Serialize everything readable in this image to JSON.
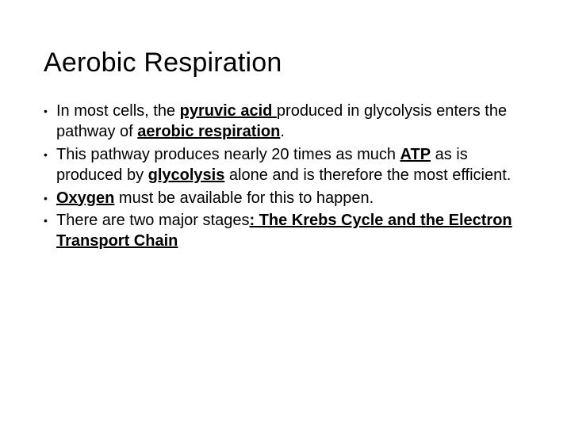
{
  "slide": {
    "title": "Aerobic Respiration",
    "bullets": [
      {
        "segments": [
          {
            "text": "In most cells, the ",
            "style": "plain"
          },
          {
            "text": "pyruvic acid ",
            "style": "bu"
          },
          {
            "text": "produced in glycolysis enters the pathway of ",
            "style": "plain"
          },
          {
            "text": "aerobic respiration",
            "style": "bu"
          },
          {
            "text": ".",
            "style": "plain"
          }
        ]
      },
      {
        "segments": [
          {
            "text": "This pathway produces nearly 20 times as much ",
            "style": "plain"
          },
          {
            "text": "ATP",
            "style": "bu"
          },
          {
            "text": " as is produced by ",
            "style": "plain"
          },
          {
            "text": "glycolysis",
            "style": "bu"
          },
          {
            "text": " alone and is therefore the most efficient.",
            "style": "plain"
          }
        ]
      },
      {
        "segments": [
          {
            "text": "Oxygen",
            "style": "bu"
          },
          {
            "text": " must be available for this to happen.",
            "style": "plain"
          }
        ]
      },
      {
        "segments": [
          {
            "text": "There are two major stages",
            "style": "plain"
          },
          {
            "text": ":  The Krebs Cycle and the Electron Transport Chain",
            "style": "bu"
          }
        ]
      }
    ],
    "colors": {
      "background": "#ffffff",
      "text": "#000000"
    },
    "font": {
      "title_size_pt": 34,
      "body_size_pt": 20,
      "family": "Arial"
    }
  }
}
